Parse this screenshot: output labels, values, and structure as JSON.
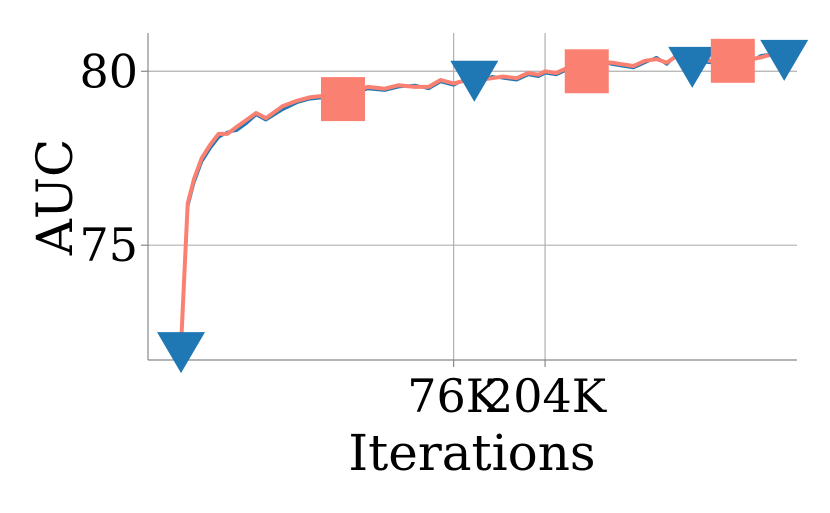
{
  "chart_data": {
    "type": "line",
    "xlabel": "Iterations",
    "ylabel": "AUC",
    "x_scale": "log",
    "xlim": [
      2800,
      3100000
    ],
    "ylim": [
      71.7,
      81.1
    ],
    "x_ticks": [
      {
        "value": 76000,
        "label": "76K"
      },
      {
        "value": 204000,
        "label": "204K"
      }
    ],
    "y_ticks": [
      {
        "value": 75,
        "label": "75"
      },
      {
        "value": 80,
        "label": "80"
      }
    ],
    "grid": true,
    "colors": {
      "salmon": "#fa8072",
      "blue": "#1f77b4",
      "grid": "#b0b0b0",
      "spine": "#888888"
    },
    "series": [
      {
        "color": "#1f77b4",
        "marker": "triangle-down",
        "x": [
          4000,
          4300,
          4600,
          5000,
          5500,
          6000,
          6600,
          7300,
          8100,
          9000,
          10000,
          12000,
          14000,
          16000,
          19000,
          22000,
          26000,
          30000,
          36000,
          42000,
          50000,
          58000,
          66000,
          76000,
          88000,
          100000,
          115000,
          130000,
          150000,
          170000,
          190000,
          204000,
          230000,
          260000,
          290000,
          330000,
          370000,
          420000,
          470000,
          530000,
          600000,
          680000,
          760000,
          850000,
          950000,
          1050000,
          1200000,
          1350000,
          1500000,
          1700000,
          1900000,
          2100000,
          2400000,
          2700000
        ],
        "y": [
          72.1,
          76.1,
          76.8,
          77.4,
          77.8,
          78.1,
          78.25,
          78.3,
          78.5,
          78.75,
          78.6,
          78.9,
          79.1,
          79.2,
          79.25,
          79.4,
          79.35,
          79.5,
          79.45,
          79.55,
          79.6,
          79.5,
          79.7,
          79.6,
          79.8,
          79.7,
          79.85,
          79.8,
          79.75,
          79.9,
          79.85,
          79.95,
          79.9,
          80.05,
          80.15,
          80.0,
          80.3,
          80.2,
          80.15,
          80.1,
          80.25,
          80.4,
          80.2,
          80.5,
          80.35,
          80.3,
          80.25,
          80.3,
          80.4,
          80.5,
          80.3,
          80.45,
          80.5,
          80.6
        ],
        "markers_x": [
          4000,
          95000,
          1000000,
          2700000
        ],
        "markers_y": [
          72.1,
          79.9,
          80.3,
          80.5
        ]
      },
      {
        "color": "#fa8072",
        "marker": "square",
        "x": [
          4000,
          4300,
          4600,
          5000,
          5500,
          6000,
          6600,
          7300,
          8100,
          9000,
          10000,
          12000,
          14000,
          16000,
          19000,
          22000,
          26000,
          30000,
          36000,
          42000,
          50000,
          58000,
          66000,
          76000,
          88000,
          100000,
          115000,
          130000,
          150000,
          170000,
          190000,
          204000,
          230000,
          260000,
          290000,
          330000,
          370000,
          420000,
          470000,
          530000,
          600000,
          680000,
          760000,
          850000,
          950000,
          1050000,
          1200000,
          1350000,
          1500000,
          1700000,
          1900000,
          2100000,
          2400000,
          2700000
        ],
        "y": [
          72.1,
          76.2,
          76.9,
          77.5,
          77.9,
          78.2,
          78.2,
          78.4,
          78.6,
          78.8,
          78.65,
          79.0,
          79.15,
          79.25,
          79.3,
          79.45,
          79.4,
          79.55,
          79.5,
          79.6,
          79.55,
          79.55,
          79.75,
          79.65,
          79.75,
          79.75,
          79.8,
          79.85,
          79.8,
          79.95,
          79.9,
          80.0,
          79.95,
          80.1,
          80.1,
          80.05,
          80.25,
          80.25,
          80.2,
          80.15,
          80.3,
          80.35,
          80.25,
          80.45,
          80.4,
          80.35,
          80.3,
          80.35,
          80.45,
          80.55,
          80.35,
          80.4,
          80.5,
          80.55
        ],
        "markers_x": [
          23000,
          320000,
          1550000
        ],
        "markers_y": [
          79.2,
          80.0,
          80.3
        ]
      }
    ]
  }
}
